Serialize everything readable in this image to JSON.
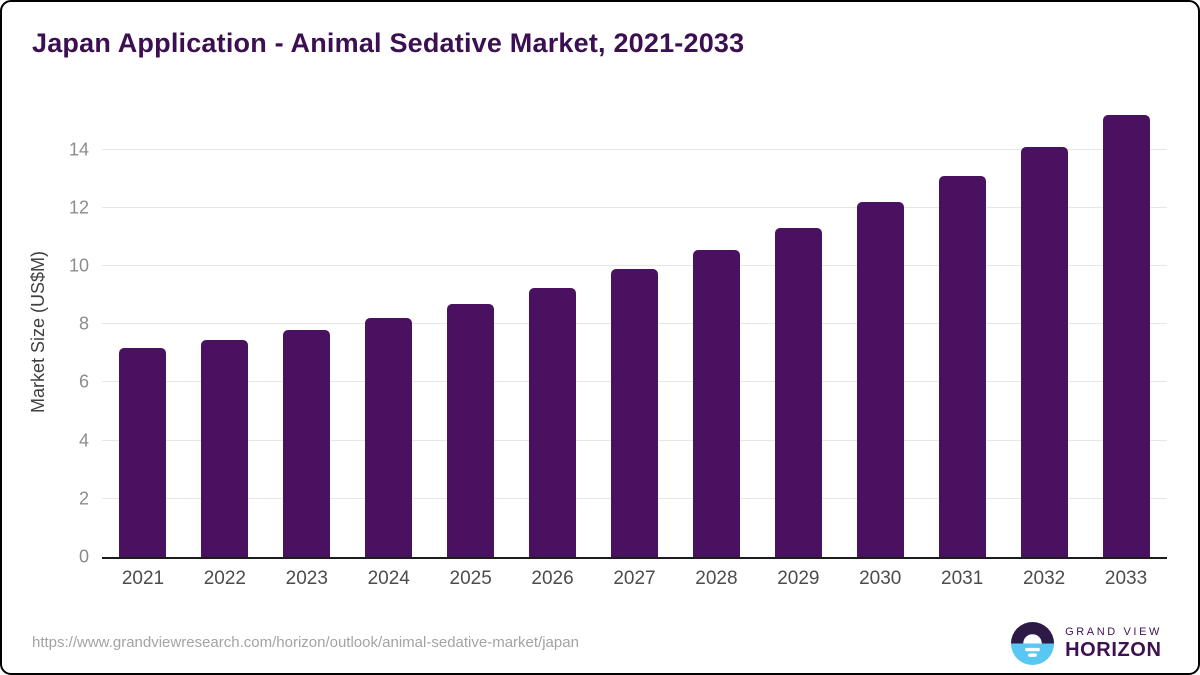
{
  "chart_data": {
    "type": "bar",
    "title": "Japan Application - Animal Sedative Market, 2021-2033",
    "categories": [
      "2021",
      "2022",
      "2023",
      "2024",
      "2025",
      "2026",
      "2027",
      "2028",
      "2029",
      "2030",
      "2031",
      "2032",
      "2033"
    ],
    "values": [
      7.2,
      7.45,
      7.8,
      8.2,
      8.7,
      9.25,
      9.9,
      10.55,
      11.3,
      12.2,
      13.1,
      14.1,
      15.2
    ],
    "xlabel": "",
    "ylabel": "Market Size (US$M)",
    "ylim": [
      0,
      15.5
    ],
    "yticks": [
      0,
      2,
      4,
      6,
      8,
      10,
      12,
      14
    ],
    "grid": true,
    "legend": false,
    "bar_color": "#4a1160"
  },
  "colors": {
    "title": "#3b0f52",
    "bar": "#4a1160",
    "gridline": "#e6e6e6",
    "axis_line": "#1c1c1c",
    "y_tick_label": "#8c8c8c",
    "x_tick_label": "#4c4c4c",
    "logo_purple": "#2e1a47",
    "logo_blue": "#58c7f3",
    "logo_text": "#3d1152"
  },
  "footer": {
    "source_url": "https://www.grandviewresearch.com/horizon/outlook/animal-sedative-market/japan",
    "logo": {
      "line1": "GRAND VIEW",
      "line2": "HORIZON"
    }
  }
}
